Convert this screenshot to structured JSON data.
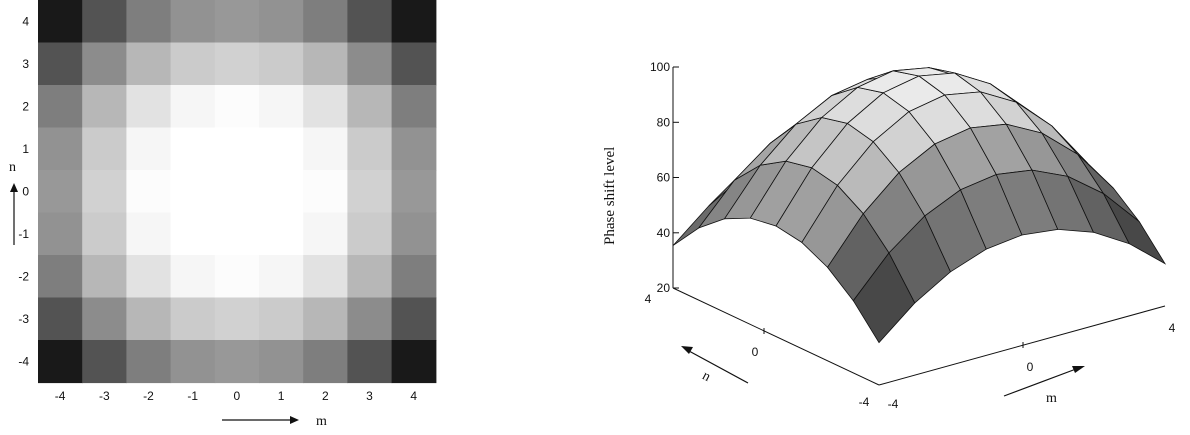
{
  "chart_data": [
    {
      "type": "heatmap",
      "title": "",
      "xlabel": "m",
      "ylabel": "n",
      "x": [
        -4,
        -3,
        -2,
        -1,
        0,
        1,
        2,
        3,
        4
      ],
      "y": [
        -4,
        -3,
        -2,
        -1,
        0,
        1,
        2,
        3,
        4
      ],
      "x_tick_labels": [
        "-4",
        "-3",
        "-2",
        "-1",
        "0",
        "1",
        "2",
        "3",
        "4"
      ],
      "y_tick_labels": [
        "-4",
        "-3",
        "-2",
        "-1",
        "0",
        "1",
        "2",
        "3",
        "4"
      ],
      "colormap": "grayscale",
      "value_range": [
        20,
        100
      ],
      "values_note_rows_from_n_4_to_n_minus_4": [
        [
          20,
          40,
          55,
          62,
          64,
          62,
          55,
          40,
          20
        ],
        [
          40,
          60,
          75,
          82,
          84,
          82,
          75,
          60,
          40
        ],
        [
          55,
          75,
          90,
          97,
          99,
          97,
          90,
          75,
          55
        ],
        [
          62,
          82,
          97,
          100,
          100,
          100,
          97,
          82,
          62
        ],
        [
          64,
          84,
          99,
          100,
          100,
          100,
          99,
          84,
          64
        ],
        [
          62,
          82,
          97,
          100,
          100,
          100,
          97,
          82,
          62
        ],
        [
          55,
          75,
          90,
          97,
          99,
          97,
          90,
          75,
          55
        ],
        [
          40,
          60,
          75,
          82,
          84,
          82,
          75,
          60,
          40
        ],
        [
          20,
          40,
          55,
          62,
          64,
          62,
          55,
          40,
          20
        ]
      ]
    },
    {
      "type": "surface",
      "title": "",
      "xlabel": "m",
      "ylabel": "n",
      "zlabel": "Phase shift level",
      "x": [
        -4,
        -3,
        -2,
        -1,
        0,
        1,
        2,
        3,
        4
      ],
      "y": [
        -4,
        -3,
        -2,
        -1,
        0,
        1,
        2,
        3,
        4
      ],
      "x_tick_labels": [
        "-4",
        "0",
        "4"
      ],
      "y_tick_labels": [
        "-4",
        "0",
        "4"
      ],
      "z_tick_labels": [
        "20",
        "40",
        "60",
        "80",
        "100"
      ],
      "zlim": [
        20,
        100
      ],
      "z_formula_note": "same grid as heatmap"
    }
  ]
}
